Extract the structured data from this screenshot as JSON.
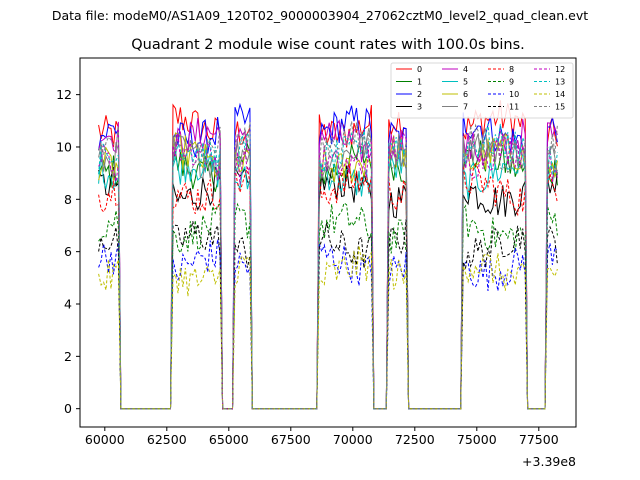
{
  "chart_data": {
    "type": "line",
    "suptitle": "Data file: modeM0/AS1A09_120T02_9000003904_27062cztM0_level2_quad_clean.evt",
    "title": "Quadrant 2 module wise count rates with 100.0s bins.",
    "xlabel": "",
    "ylabel": "",
    "x_offset_label": "+3.39e8",
    "xlim": [
      59000,
      79000
    ],
    "ylim": [
      -0.7,
      13.4
    ],
    "xticks": [
      60000,
      62500,
      65000,
      67500,
      70000,
      72500,
      75000,
      77500
    ],
    "xtick_labels": [
      "60000",
      "62500",
      "65000",
      "67500",
      "70000",
      "72500",
      "75000",
      "77500"
    ],
    "yticks": [
      0,
      2,
      4,
      6,
      8,
      10,
      12
    ],
    "ytick_labels": [
      "0",
      "2",
      "4",
      "6",
      "8",
      "10",
      "12"
    ],
    "active_intervals": [
      [
        59750,
        60550
      ],
      [
        62750,
        64700
      ],
      [
        65200,
        65850
      ],
      [
        68600,
        70750
      ],
      [
        71450,
        72200
      ],
      [
        74400,
        76950
      ],
      [
        77800,
        78250
      ]
    ],
    "legend_location": "upper right",
    "legend_columns": 4,
    "series": [
      {
        "name": "0",
        "color": "#ff0000",
        "dash": "solid",
        "level": 10.8
      },
      {
        "name": "1",
        "color": "#008000",
        "dash": "solid",
        "level": 9.3
      },
      {
        "name": "2",
        "color": "#0000ff",
        "dash": "solid",
        "level": 10.6
      },
      {
        "name": "3",
        "color": "#000000",
        "dash": "solid",
        "level": 8.3
      },
      {
        "name": "4",
        "color": "#bf00bf",
        "dash": "solid",
        "level": 10.2
      },
      {
        "name": "5",
        "color": "#00bfbf",
        "dash": "solid",
        "level": 9.0
      },
      {
        "name": "6",
        "color": "#bfbf00",
        "dash": "solid",
        "level": 9.5
      },
      {
        "name": "7",
        "color": "#808080",
        "dash": "solid",
        "level": 9.8
      },
      {
        "name": "8",
        "color": "#ff0000",
        "dash": "dashed",
        "level": 8.4
      },
      {
        "name": "9",
        "color": "#008000",
        "dash": "dashed",
        "level": 6.9
      },
      {
        "name": "10",
        "color": "#0000ff",
        "dash": "dashed",
        "level": 5.5
      },
      {
        "name": "11",
        "color": "#000000",
        "dash": "dashed",
        "level": 6.3
      },
      {
        "name": "12",
        "color": "#bf00bf",
        "dash": "dashed",
        "level": 9.6
      },
      {
        "name": "13",
        "color": "#00bfbf",
        "dash": "dashed",
        "level": 9.9
      },
      {
        "name": "14",
        "color": "#bfbf00",
        "dash": "dashed",
        "level": 5.2
      },
      {
        "name": "15",
        "color": "#808080",
        "dash": "dashed",
        "level": 10.0
      }
    ]
  }
}
